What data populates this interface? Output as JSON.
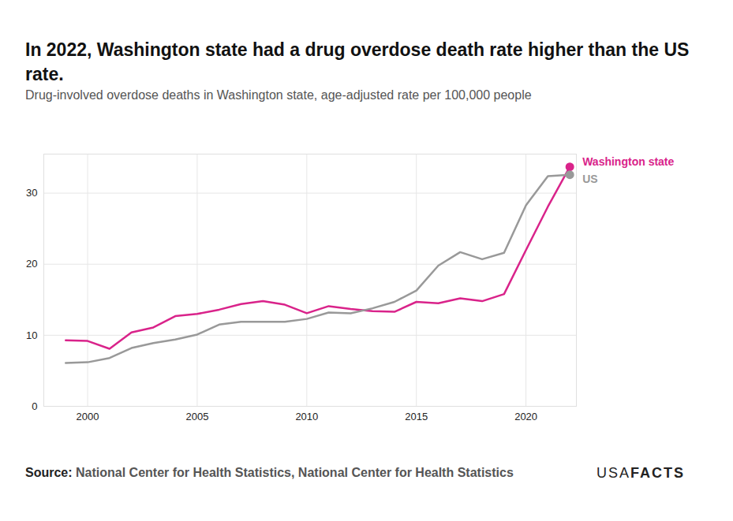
{
  "chart_data": {
    "type": "line",
    "title": "In 2022, Washington state had a drug overdose death rate higher than the US rate.",
    "subtitle": "Drug-involved overdose deaths in Washington state, age-adjusted rate per 100,000 people",
    "source_label": "Source:",
    "source": "National Center for Health Statistics, National Center for Health Statistics",
    "logo": [
      "USA",
      "FACTS"
    ],
    "x": [
      1999,
      2000,
      2001,
      2002,
      2003,
      2004,
      2005,
      2006,
      2007,
      2008,
      2009,
      2010,
      2011,
      2012,
      2013,
      2014,
      2015,
      2016,
      2017,
      2018,
      2019,
      2020,
      2021,
      2022
    ],
    "series": [
      {
        "name": "Washington state",
        "color": "#d9238a",
        "marker": "circle",
        "values": [
          9.3,
          9.2,
          8.1,
          10.4,
          11.1,
          12.7,
          13.0,
          13.6,
          14.4,
          14.8,
          14.3,
          13.1,
          14.1,
          13.7,
          13.4,
          13.3,
          14.7,
          14.5,
          15.2,
          14.8,
          15.8,
          22.0,
          28.1,
          33.7
        ]
      },
      {
        "name": "US",
        "color": "#999999",
        "marker": "circle",
        "values": [
          6.1,
          6.2,
          6.8,
          8.2,
          8.9,
          9.4,
          10.1,
          11.5,
          11.9,
          11.9,
          11.9,
          12.3,
          13.2,
          13.1,
          13.8,
          14.7,
          16.3,
          19.8,
          21.7,
          20.7,
          21.6,
          28.3,
          32.4,
          32.6
        ]
      }
    ],
    "xlim": [
      1998,
      2022.3
    ],
    "xticks": [
      2000,
      2005,
      2010,
      2015,
      2020
    ],
    "ylim": [
      0,
      35.5
    ],
    "yticks": [
      0,
      10,
      20,
      30
    ],
    "grid": true
  }
}
